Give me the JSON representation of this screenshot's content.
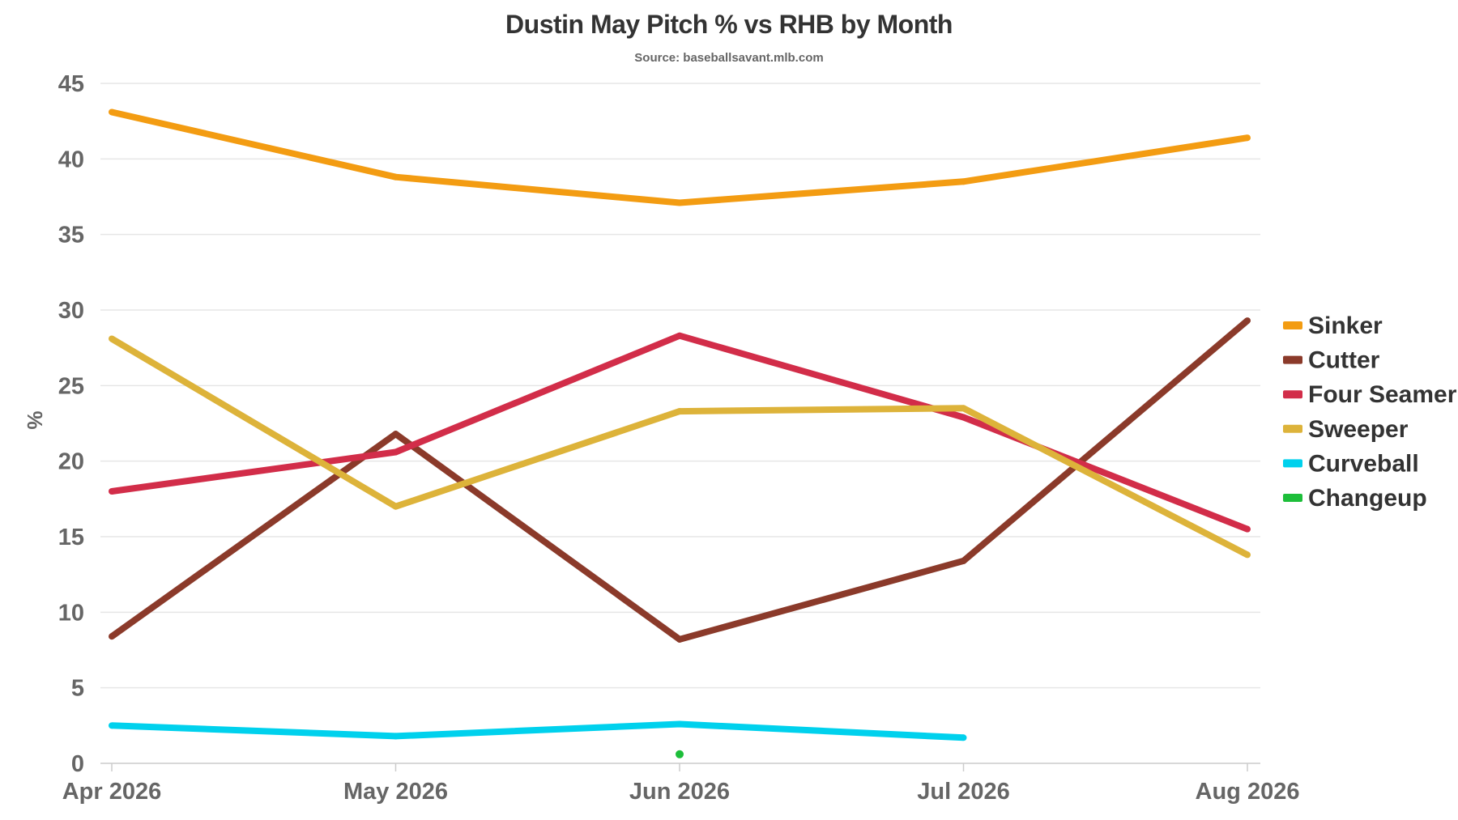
{
  "title": "Dustin May Pitch % vs RHB by Month",
  "subtitle": "Source: baseballsavant.mlb.com",
  "chart_data": {
    "type": "line",
    "title": "Dustin May Pitch % vs RHB by Month",
    "subtitle": "Source: baseballsavant.mlb.com",
    "xlabel": "",
    "ylabel": "%",
    "categories": [
      "Apr 2026",
      "May 2026",
      "Jun 2026",
      "Jul 2026",
      "Aug 2026"
    ],
    "ylim": [
      0,
      45
    ],
    "yticks": [
      0,
      5,
      10,
      15,
      20,
      25,
      30,
      35,
      40,
      45
    ],
    "grid": true,
    "legend_position": "right",
    "series": [
      {
        "name": "Sinker",
        "color": "#f39c12",
        "values": [
          43.1,
          38.8,
          37.1,
          38.5,
          41.4
        ]
      },
      {
        "name": "Cutter",
        "color": "#8b3a2a",
        "values": [
          8.4,
          21.8,
          8.2,
          13.4,
          29.3
        ]
      },
      {
        "name": "Four Seamer",
        "color": "#d22d49",
        "values": [
          18.0,
          20.6,
          28.3,
          22.9,
          15.5
        ]
      },
      {
        "name": "Sweeper",
        "color": "#ddb33a",
        "values": [
          28.1,
          17.0,
          23.3,
          23.5,
          13.8
        ]
      },
      {
        "name": "Curveball",
        "color": "#00d1ed",
        "values": [
          2.5,
          1.8,
          2.6,
          1.7,
          null
        ]
      },
      {
        "name": "Changeup",
        "color": "#1dbe3a",
        "values": [
          null,
          null,
          0.6,
          null,
          null
        ]
      }
    ]
  }
}
